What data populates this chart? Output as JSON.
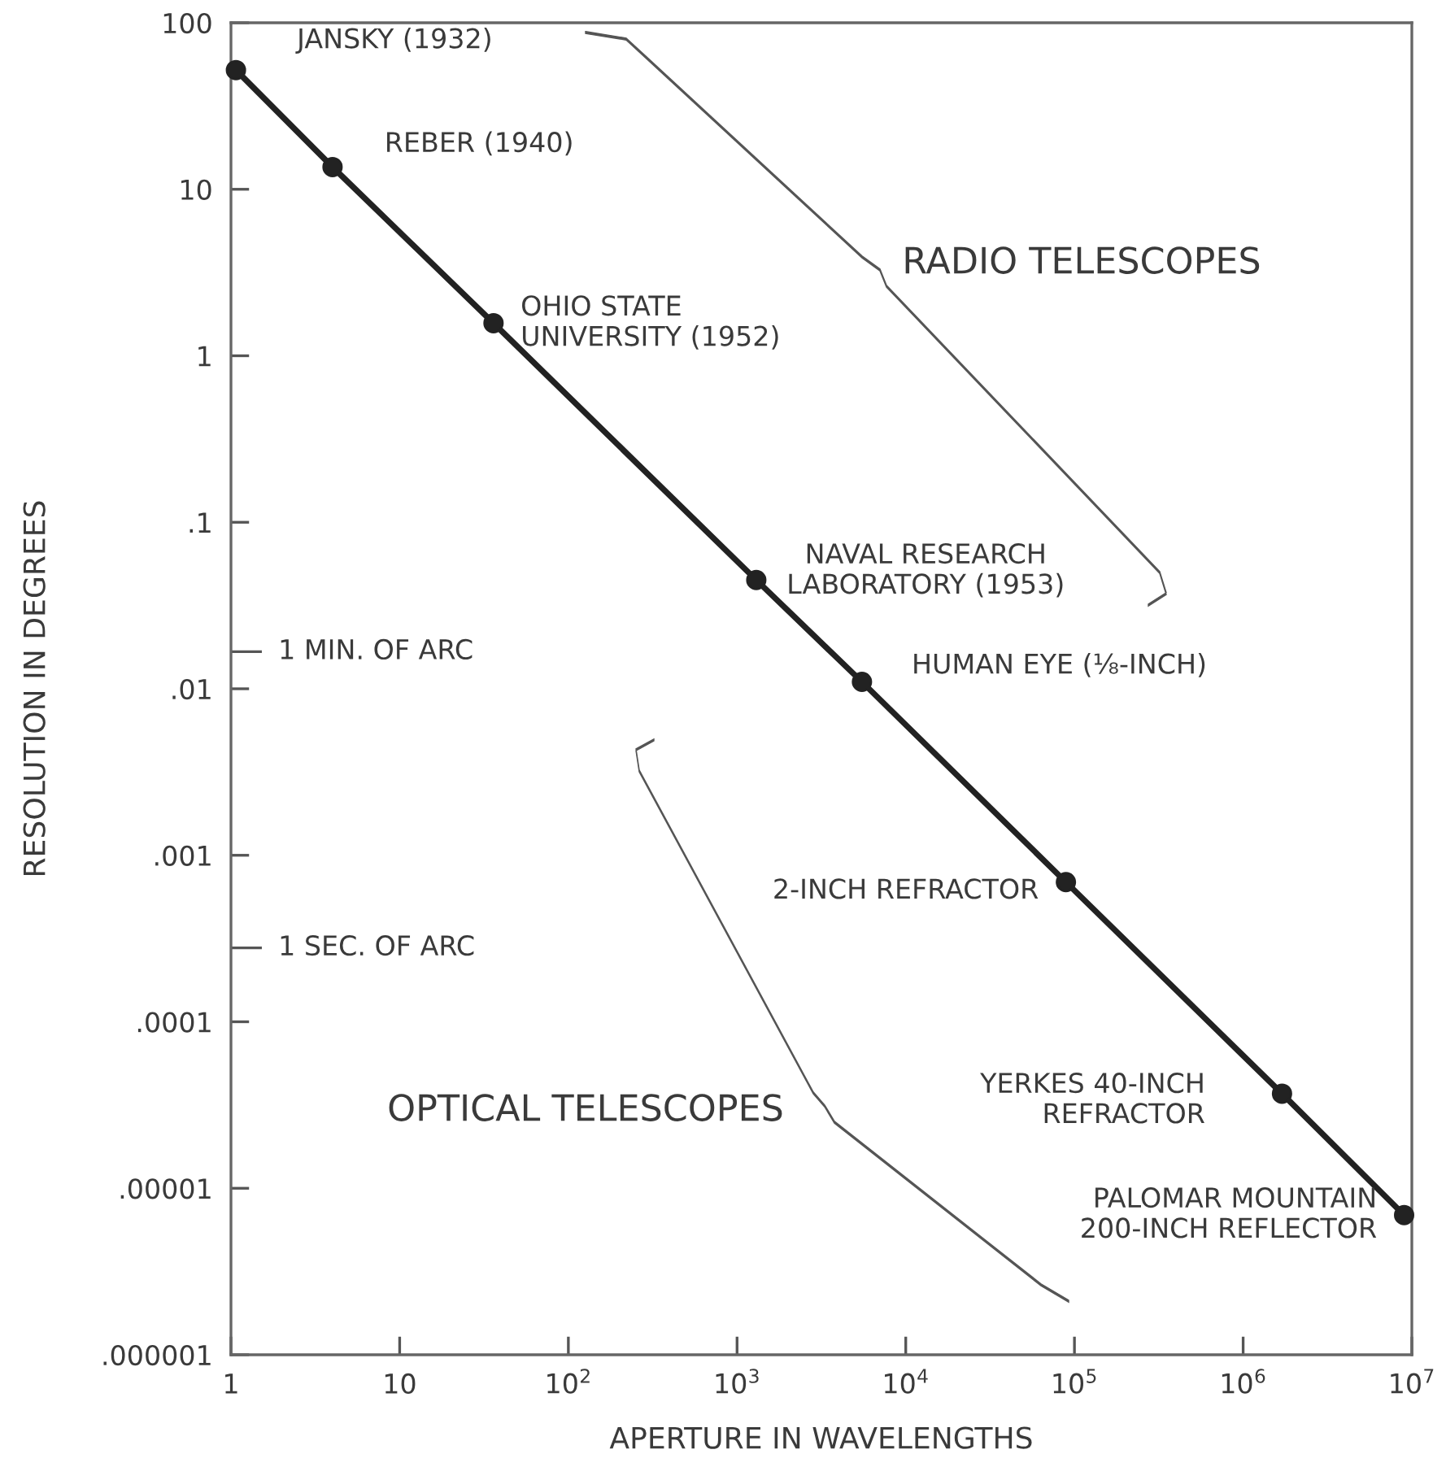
{
  "chart_data": {
    "type": "line",
    "xlabel": "APERTURE IN WAVELENGTHS",
    "ylabel": "RESOLUTION IN DEGREES",
    "log": "xy",
    "grid": false,
    "marker": "circle",
    "line_style": "solid",
    "xlim": [
      1,
      10000000
    ],
    "ylim": [
      1e-06,
      100
    ],
    "xticks": [
      1,
      10,
      {
        "value": 100,
        "label": "10$^{2}$"
      },
      {
        "value": 1000,
        "label": "10$^{3}$"
      },
      {
        "value": 10000,
        "label": "10$^{4}$"
      },
      {
        "value": 100000,
        "label": "10$^{5}$"
      },
      {
        "value": 1000000,
        "label": "10$^{6}$"
      },
      {
        "value": 10000000,
        "label": "10$^{7}$"
      }
    ],
    "yticks": [
      {
        "value": 1e-06,
        "label": ".000001"
      },
      {
        "value": 1e-05,
        "label": ".00001"
      },
      {
        "value": 0.0001,
        "label": ".0001"
      },
      {
        "value": 0.001,
        "label": ".001"
      },
      {
        "value": 0.01,
        "label": ".01"
      },
      {
        "value": 0.1,
        "label": ".1"
      },
      1,
      10,
      100
    ],
    "series": [
      {
        "color": "#222222",
        "x": [
          1.07,
          4.0,
          36,
          1300,
          5500,
          89000,
          1700000,
          9000000
        ],
        "values": [
          52,
          13.6,
          1.57,
          0.045,
          0.011,
          0.00069,
          3.7e-05,
          6.9e-06
        ]
      }
    ],
    "ref_lines": [
      {
        "axis": "y",
        "value": 0.0167,
        "label": "1 MIN. OF ARC"
      },
      {
        "axis": "y",
        "value": 0.000278,
        "label": "1 SEC. OF ARC"
      }
    ],
    "annotations": [
      {
        "text": "JANSKY (1932)",
        "x": 1.07,
        "y": 52
      },
      {
        "text": "REBER (1940)",
        "x": 4.0,
        "y": 13.6
      },
      {
        "text": "OHIO STATE\nUNIVERSITY (1952)",
        "x": 36,
        "y": 1.57
      },
      {
        "text": "NAVAL RESEARCH\nLABORATORY (1953)",
        "x": 1300,
        "y": 0.045
      },
      {
        "text": "HUMAN EYE (⅛-INCH)",
        "x": 5500,
        "y": 0.011
      },
      {
        "text": "2-INCH REFRACTOR",
        "x": 89000,
        "y": 0.00069
      },
      {
        "text": "YERKES 40-INCH\nREFRACTOR",
        "x": 1700000,
        "y": 3.7e-05
      },
      {
        "text": "PALOMAR MOUNTAIN\n200-INCH REFLECTOR",
        "x": 9000000,
        "y": 6.9e-06
      },
      "RADIO TELESCOPES",
      "OPTICAL TELESCOPES"
    ]
  }
}
